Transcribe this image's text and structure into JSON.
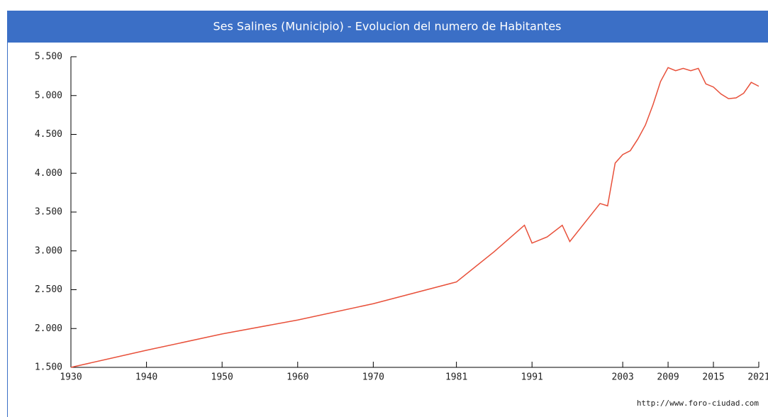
{
  "chart_data": {
    "type": "line",
    "title": "Ses Salines (Municipio) - Evolucion del numero de Habitantes",
    "source": "http://www.foro-ciudad.com",
    "x": [
      1930,
      1940,
      1950,
      1960,
      1970,
      1981,
      1986,
      1990,
      1991,
      1993,
      1995,
      1996,
      2000,
      2001,
      2002,
      2003,
      2004,
      2005,
      2006,
      2007,
      2008,
      2009,
      2010,
      2011,
      2012,
      2013,
      2014,
      2015,
      2016,
      2017,
      2018,
      2019,
      2020,
      2021
    ],
    "series": [
      {
        "color": "#e8503a",
        "values": [
          1500,
          1720,
          1930,
          2110,
          2320,
          2600,
          2990,
          3330,
          3100,
          3180,
          3330,
          3120,
          3610,
          3580,
          4130,
          4240,
          4290,
          4440,
          4620,
          4880,
          5180,
          5360,
          5320,
          5350,
          5320,
          5350,
          5150,
          5110,
          5020,
          4960,
          4970,
          5030,
          5170,
          5120
        ]
      }
    ],
    "xlim": [
      1930,
      2021
    ],
    "xticks": [
      1930,
      1940,
      1950,
      1960,
      1970,
      1981,
      1991,
      2003,
      2009,
      2015,
      2021
    ],
    "ylim": [
      1500,
      5500
    ],
    "yticks": [
      {
        "value": 1500,
        "label": "1.500"
      },
      {
        "value": 2000,
        "label": "2.000"
      },
      {
        "value": 2500,
        "label": "2.500"
      },
      {
        "value": 3000,
        "label": "3.000"
      },
      {
        "value": 3500,
        "label": "3.500"
      },
      {
        "value": 4000,
        "label": "4.000"
      },
      {
        "value": 4500,
        "label": "4.500"
      },
      {
        "value": 5000,
        "label": "5.000"
      },
      {
        "value": 5500,
        "label": "5.500"
      }
    ],
    "grid": false
  }
}
